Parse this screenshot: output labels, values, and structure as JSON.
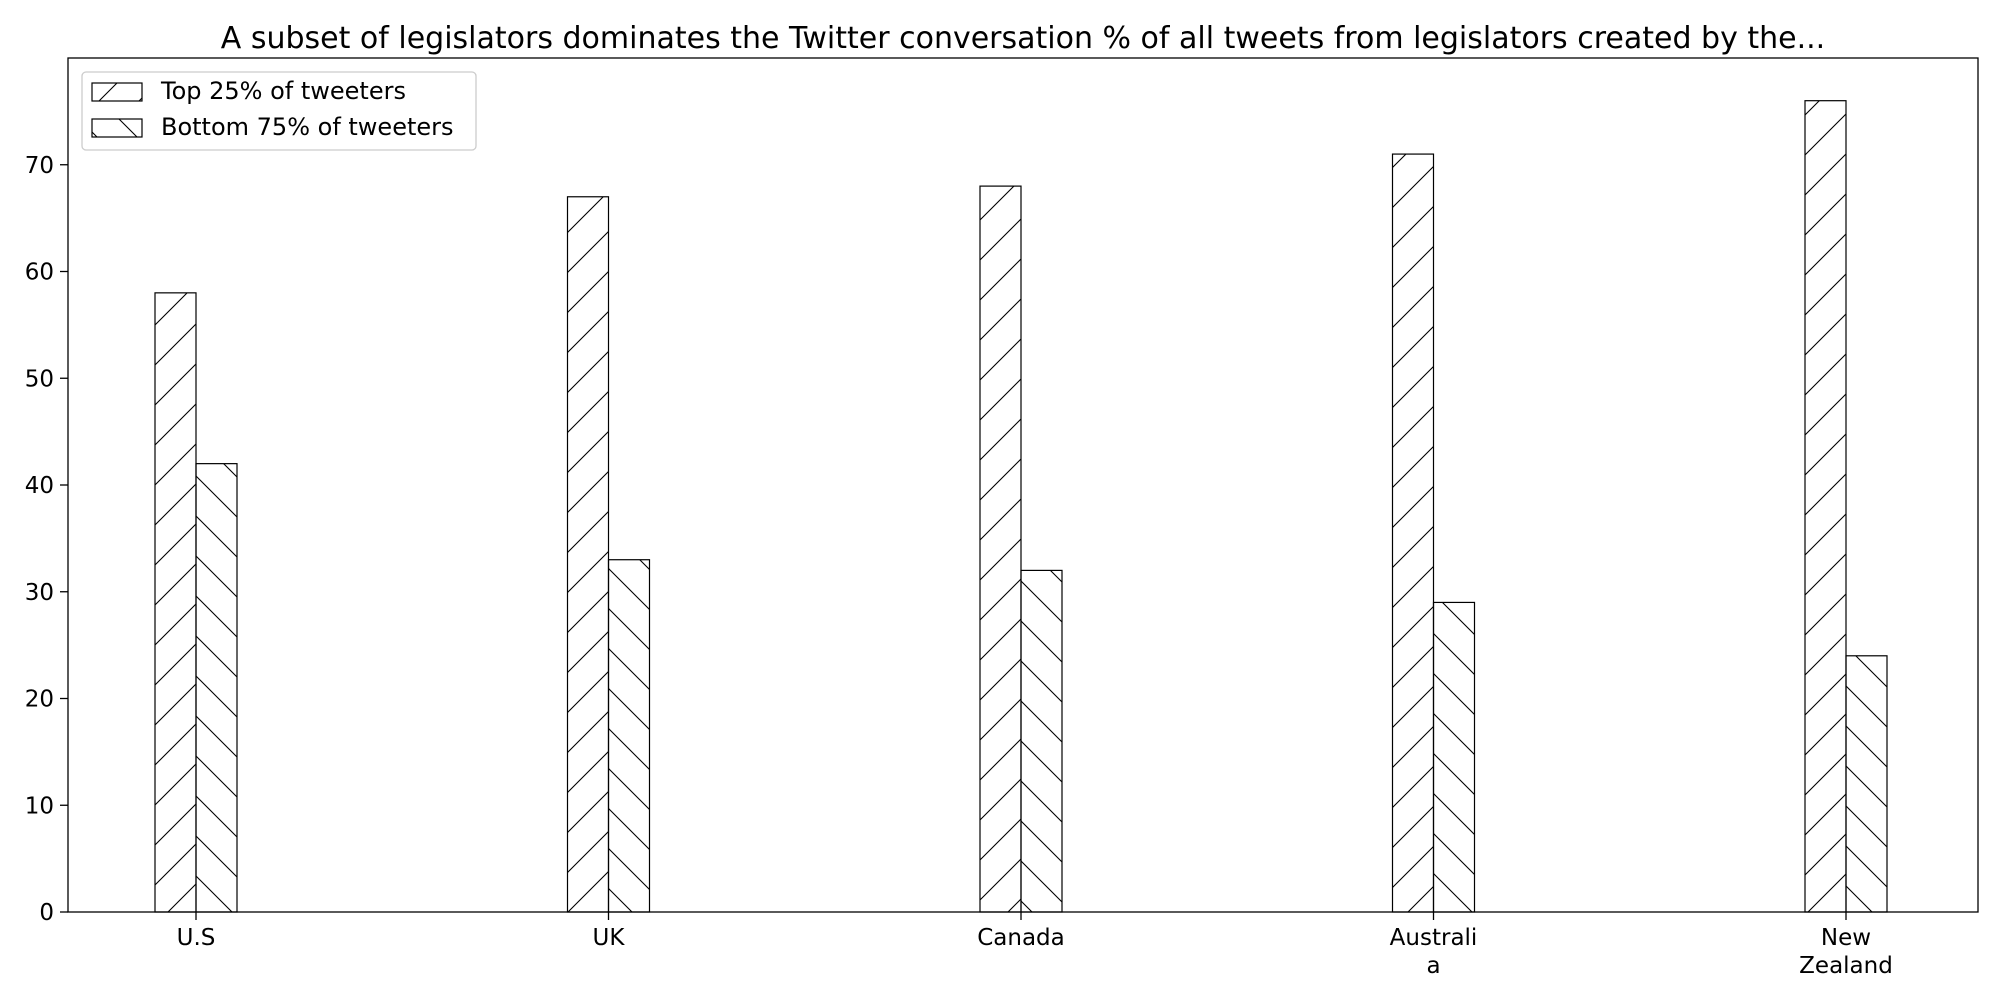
{
  "chart_data": {
    "type": "bar",
    "title": "A subset of legislators dominates the Twitter conversation % of all tweets from legislators created by the...",
    "xlabel": "",
    "ylabel": "",
    "categories": [
      [
        "U.S"
      ],
      [
        "UK"
      ],
      [
        "Canada"
      ],
      [
        "Australi",
        "a"
      ],
      [
        "New",
        "Zealand"
      ]
    ],
    "series": [
      {
        "name": "Top 25% of tweeters",
        "values": [
          58,
          67,
          68,
          71,
          76
        ],
        "hatch": "/"
      },
      {
        "name": "Bottom 75% of tweeters",
        "values": [
          42,
          33,
          32,
          29,
          24
        ],
        "hatch": "\\"
      }
    ],
    "ylim": [
      0,
      80
    ],
    "yticks": [
      0,
      10,
      20,
      30,
      40,
      50,
      60,
      70
    ],
    "grid": false,
    "legend_position": "top-left",
    "colors": {
      "bar_fill": "#ffffff",
      "bar_edge": "#000000",
      "axis": "#000000"
    }
  }
}
